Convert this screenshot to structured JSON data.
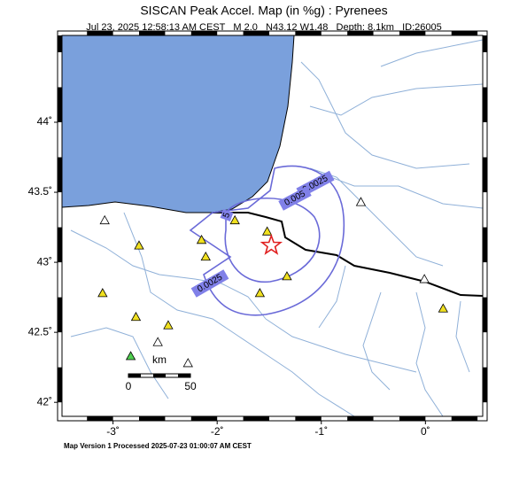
{
  "map": {
    "title": "SISCAN Peak Accel. Map (in %g) : Pyrenees",
    "subtitle": "Jul 23, 2025 12:58:13 AM CEST   M 2.0   N43.12 W1.48   Depth: 8.1km   ID:26005",
    "xlim": [
      -3.49,
      0.55
    ],
    "ylim": [
      41.9,
      44.62
    ],
    "xticks": [
      {
        "value": -3,
        "label": "-3˚"
      },
      {
        "value": -2,
        "label": "-2˚"
      },
      {
        "value": -1,
        "label": "-1˚"
      },
      {
        "value": 0,
        "label": "0˚"
      }
    ],
    "yticks": [
      {
        "value": 44,
        "label": "44˚"
      },
      {
        "value": 43.5,
        "label": "43.5˚"
      },
      {
        "value": 43,
        "label": "43˚"
      },
      {
        "value": 42.5,
        "label": "42.5˚"
      },
      {
        "value": 42,
        "label": "42˚"
      }
    ],
    "epicenter": {
      "lon": -1.48,
      "lat": 43.12,
      "color": "#e02020"
    },
    "contour_labels": [
      "0.0025",
      "0.005",
      "5",
      "0.0025"
    ],
    "stations": [
      {
        "lon": -2.75,
        "lat": 43.12,
        "color": "#f0e020"
      },
      {
        "lon": -2.15,
        "lat": 43.16,
        "color": "#f0e020"
      },
      {
        "lon": -1.83,
        "lat": 43.3,
        "color": "#f0e020"
      },
      {
        "lon": -1.52,
        "lat": 43.22,
        "color": "#f0e020"
      },
      {
        "lon": -2.11,
        "lat": 43.04,
        "color": "#f0e020"
      },
      {
        "lon": -3.1,
        "lat": 42.78,
        "color": "#f0e020"
      },
      {
        "lon": -2.78,
        "lat": 42.61,
        "color": "#f0e020"
      },
      {
        "lon": -2.47,
        "lat": 42.55,
        "color": "#f0e020"
      },
      {
        "lon": -1.59,
        "lat": 42.78,
        "color": "#f0e020"
      },
      {
        "lon": -1.33,
        "lat": 42.9,
        "color": "#f0e020"
      },
      {
        "lon": 0.17,
        "lat": 42.67,
        "color": "#f0e020"
      },
      {
        "lon": -3.08,
        "lat": 43.3,
        "color": "#ffffff"
      },
      {
        "lon": -0.62,
        "lat": 43.43,
        "color": "#ffffff"
      },
      {
        "lon": -0.01,
        "lat": 42.88,
        "color": "#ffffff"
      },
      {
        "lon": -2.57,
        "lat": 42.43,
        "color": "#ffffff"
      },
      {
        "lon": -2.28,
        "lat": 42.28,
        "color": "#ffffff"
      },
      {
        "lon": -2.83,
        "lat": 42.33,
        "color": "#50d050"
      }
    ],
    "scale": {
      "unit": "km",
      "start": "0",
      "end": "50"
    },
    "footer": "Map Version 1 Processed 2025-07-23 01:00:07 AM CEST"
  }
}
